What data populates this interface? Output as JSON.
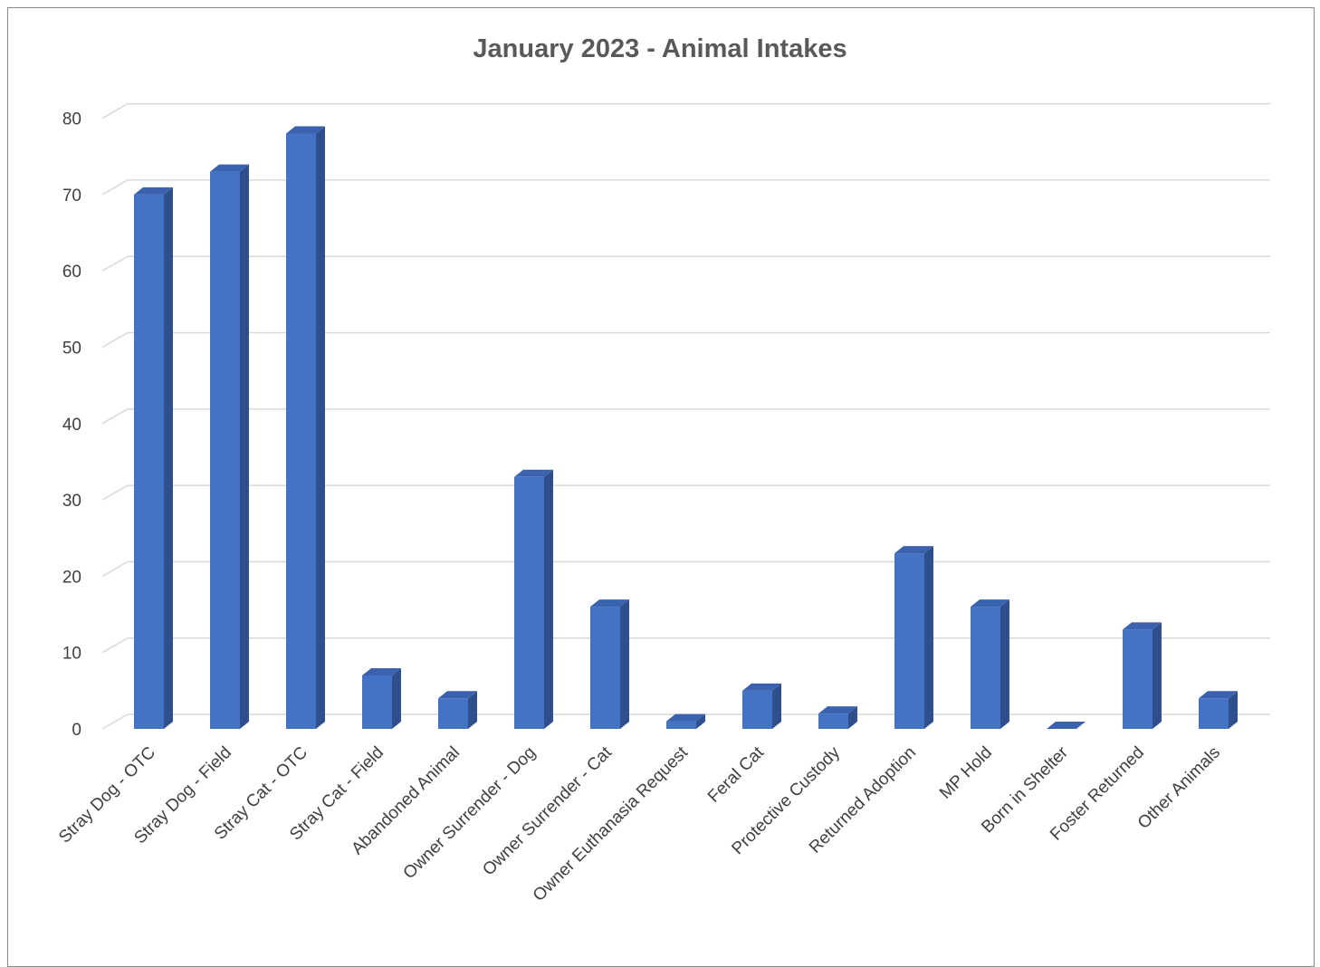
{
  "chart_data": {
    "type": "bar",
    "title": "January 2023 - Animal Intakes",
    "xlabel": "",
    "ylabel": "",
    "ylim": [
      0,
      80
    ],
    "yticks": [
      0,
      10,
      20,
      30,
      40,
      50,
      60,
      70,
      80
    ],
    "grid": true,
    "legend": "none",
    "style": "3d-column",
    "bar_color": "#4472C4",
    "bar_side_color": "#2F4F8C",
    "bar_top_color": "#3A62AE",
    "categories": [
      "Stray Dog - OTC",
      "Stray Dog - Field",
      "Stray Cat - OTC",
      "Stray Cat - Field",
      "Abandoned Animal",
      "Owner Surrender - Dog",
      "Owner Surrender - Cat",
      "Owner Euthanasia Request",
      "Feral Cat",
      "Protective Custody",
      "Returned Adoption",
      "MP Hold",
      "Born in Shelter",
      "Foster Returned",
      "Other Animals"
    ],
    "values": [
      70,
      73,
      78,
      7,
      4,
      33,
      16,
      1,
      5,
      2,
      23,
      16,
      0,
      13,
      4
    ]
  }
}
